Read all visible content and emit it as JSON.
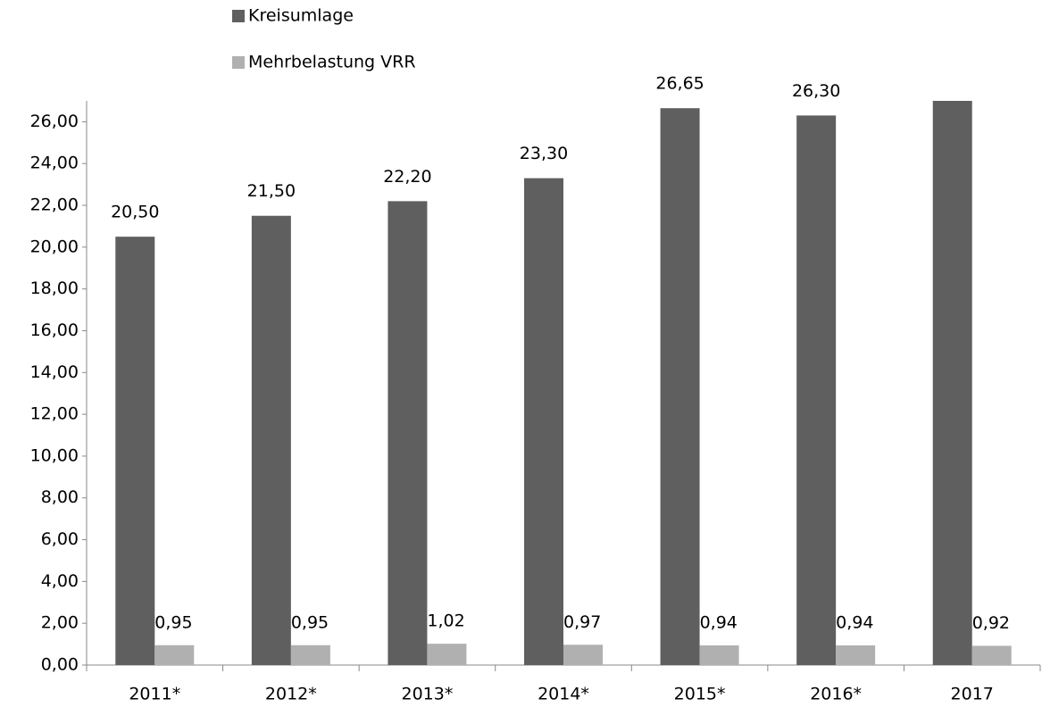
{
  "chart_data": {
    "type": "bar",
    "categories": [
      "2011*",
      "2012*",
      "2013*",
      "2014*",
      "2015*",
      "2016*",
      "2017"
    ],
    "series": [
      {
        "name": "Kreisumlage",
        "color": "#5f5f5f",
        "values": [
          20.5,
          21.5,
          22.2,
          23.3,
          26.65,
          26.3,
          27.0
        ],
        "value_labels": [
          "20,50",
          "21,50",
          "22,20",
          "23,30",
          "26,65",
          "26,30",
          null
        ]
      },
      {
        "name": "Mehrbelastung VRR",
        "color": "#b0b0b0",
        "values": [
          0.95,
          0.95,
          1.02,
          0.97,
          0.94,
          0.94,
          0.92
        ],
        "value_labels": [
          "0,95",
          "0,95",
          "1,02",
          "0,97",
          "0,94",
          "0,94",
          "0,92"
        ]
      }
    ],
    "ylim": [
      0,
      27
    ],
    "yticks": [
      {
        "value": 0,
        "label": "0,00"
      },
      {
        "value": 2,
        "label": "2,00"
      },
      {
        "value": 4,
        "label": "4,00"
      },
      {
        "value": 6,
        "label": "6,00"
      },
      {
        "value": 8,
        "label": "8,00"
      },
      {
        "value": 10,
        "label": "10,00"
      },
      {
        "value": 12,
        "label": "12,00"
      },
      {
        "value": 14,
        "label": "14,00"
      },
      {
        "value": 16,
        "label": "16,00"
      },
      {
        "value": 18,
        "label": "18,00"
      },
      {
        "value": 20,
        "label": "20,00"
      },
      {
        "value": 22,
        "label": "22,00"
      },
      {
        "value": 24,
        "label": "24,00"
      },
      {
        "value": 26,
        "label": "26,00"
      }
    ],
    "grid": false
  }
}
